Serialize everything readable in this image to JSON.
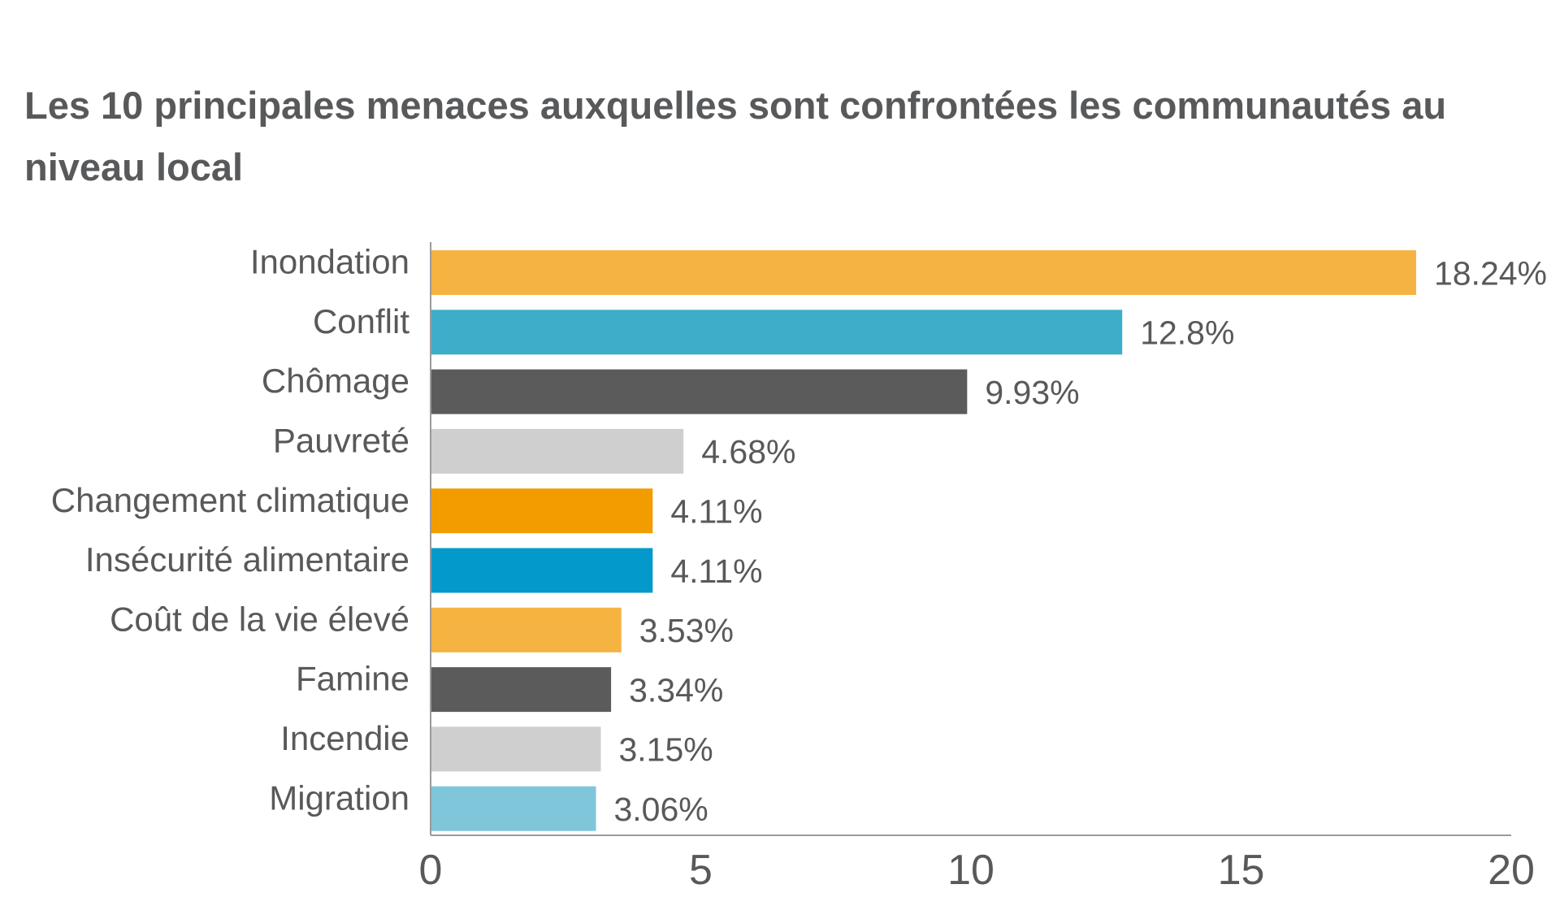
{
  "chart_data": {
    "type": "bar",
    "orientation": "horizontal",
    "title": "Les 10 principales menaces auxquelles sont confrontées les communautés au niveau local",
    "categories": [
      "Inondation",
      "Conflit",
      "Chômage",
      "Pauvreté",
      "Changement climatique",
      "Insécurité alimentaire",
      "Coût de la vie élevé",
      "Famine",
      "Incendie",
      "Migration"
    ],
    "values": [
      18.24,
      12.8,
      9.93,
      4.68,
      4.11,
      4.11,
      3.53,
      3.34,
      3.15,
      3.06
    ],
    "value_labels": [
      "18.24%",
      "12.8%",
      "9.93%",
      "4.68%",
      "4.11%",
      "4.11%",
      "3.53%",
      "3.34%",
      "3.15%",
      "3.06%"
    ],
    "colors": [
      "#f5b342",
      "#3eadc9",
      "#5b5b5b",
      "#cfcfcf",
      "#f39c00",
      "#0399cb",
      "#f5b342",
      "#5b5b5b",
      "#cfcfcf",
      "#7fc6db"
    ],
    "xlim": [
      0,
      20
    ],
    "xticks": [
      0,
      5,
      10,
      15,
      20
    ],
    "grid": false,
    "xlabel": "",
    "ylabel": ""
  }
}
